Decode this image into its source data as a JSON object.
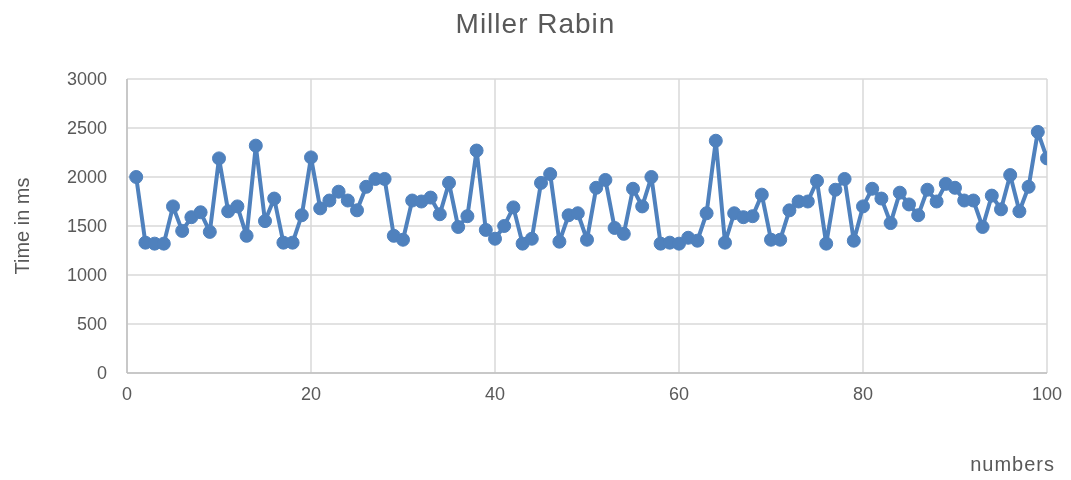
{
  "chart_data": {
    "type": "line",
    "title": "Miller Rabin",
    "xlabel": "numbers",
    "ylabel": "Time in ms",
    "x": [
      1,
      2,
      3,
      4,
      5,
      6,
      7,
      8,
      9,
      10,
      11,
      12,
      13,
      14,
      15,
      16,
      17,
      18,
      19,
      20,
      21,
      22,
      23,
      24,
      25,
      26,
      27,
      28,
      29,
      30,
      31,
      32,
      33,
      34,
      35,
      36,
      37,
      38,
      39,
      40,
      41,
      42,
      43,
      44,
      45,
      46,
      47,
      48,
      49,
      50,
      51,
      52,
      53,
      54,
      55,
      56,
      57,
      58,
      59,
      60,
      61,
      62,
      63,
      64,
      65,
      66,
      67,
      68,
      69,
      70,
      71,
      72,
      73,
      74,
      75,
      76,
      77,
      78,
      79,
      80,
      81,
      82,
      83,
      84,
      85,
      86,
      87,
      88,
      89,
      90,
      91,
      92,
      93,
      94,
      95,
      96,
      97,
      98,
      99,
      100
    ],
    "series": [
      {
        "color": "#4f81bd",
        "values": [
          2000,
          1330,
          1320,
          1320,
          1700,
          1450,
          1590,
          1640,
          1440,
          2190,
          1650,
          1700,
          1400,
          2320,
          1550,
          1780,
          1330,
          1330,
          1610,
          2200,
          1680,
          1760,
          1850,
          1760,
          1660,
          1900,
          1980,
          1980,
          1400,
          1360,
          1760,
          1750,
          1790,
          1620,
          1940,
          1490,
          1600,
          2270,
          1460,
          1370,
          1500,
          1690,
          1320,
          1370,
          1940,
          2030,
          1340,
          1610,
          1630,
          1360,
          1890,
          1970,
          1480,
          1420,
          1880,
          1700,
          2000,
          1320,
          1330,
          1320,
          1380,
          1350,
          1630,
          2370,
          1330,
          1630,
          1590,
          1600,
          1820,
          1360,
          1360,
          1660,
          1750,
          1750,
          1960,
          1320,
          1870,
          1980,
          1350,
          1700,
          1880,
          1780,
          1530,
          1840,
          1720,
          1610,
          1870,
          1750,
          1930,
          1890,
          1760,
          1760,
          1490,
          1810,
          1670,
          2020,
          1650,
          1900,
          2460,
          2190
        ]
      }
    ],
    "xlim": [
      0,
      100
    ],
    "xticks": [
      0,
      20,
      40,
      60,
      80,
      100
    ],
    "ylim": [
      0,
      3000
    ],
    "yticks": [
      0,
      500,
      1000,
      1500,
      2000,
      2500,
      3000
    ],
    "grid": true,
    "marker": "circle",
    "line_style": "solid",
    "legend": false
  }
}
